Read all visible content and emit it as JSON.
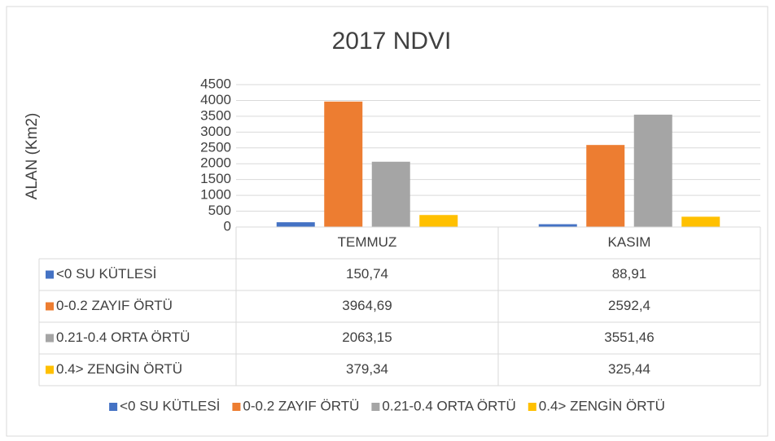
{
  "chart_data": {
    "type": "bar",
    "title": "2017 NDVI",
    "y_label": "ALAN (Km2)",
    "categories": [
      "TEMMUZ",
      "KASIM"
    ],
    "series": [
      {
        "name": "<0 SU KÜTLESİ",
        "color": "#4472c4",
        "values": [
          150.74,
          88.91
        ],
        "value_labels": [
          "150,74",
          "88,91"
        ]
      },
      {
        "name": "0-0.2 ZAYIF ÖRTÜ",
        "color": "#ed7d31",
        "values": [
          3964.69,
          2592.4
        ],
        "value_labels": [
          "3964,69",
          "2592,4"
        ]
      },
      {
        "name": "0.21-0.4 ORTA ÖRTÜ",
        "color": "#a5a5a5",
        "values": [
          2063.15,
          3551.46
        ],
        "value_labels": [
          "2063,15",
          "3551,46"
        ]
      },
      {
        "name": "0.4> ZENGİN ÖRTÜ",
        "color": "#ffc000",
        "values": [
          379.34,
          325.44
        ],
        "value_labels": [
          "379,34",
          "325,44"
        ]
      }
    ],
    "ylim": [
      0,
      4500
    ],
    "yticks": [
      0,
      500,
      1000,
      1500,
      2000,
      2500,
      3000,
      3500,
      4000,
      4500
    ],
    "grid": true,
    "legend": "bottom",
    "data_table": true
  }
}
